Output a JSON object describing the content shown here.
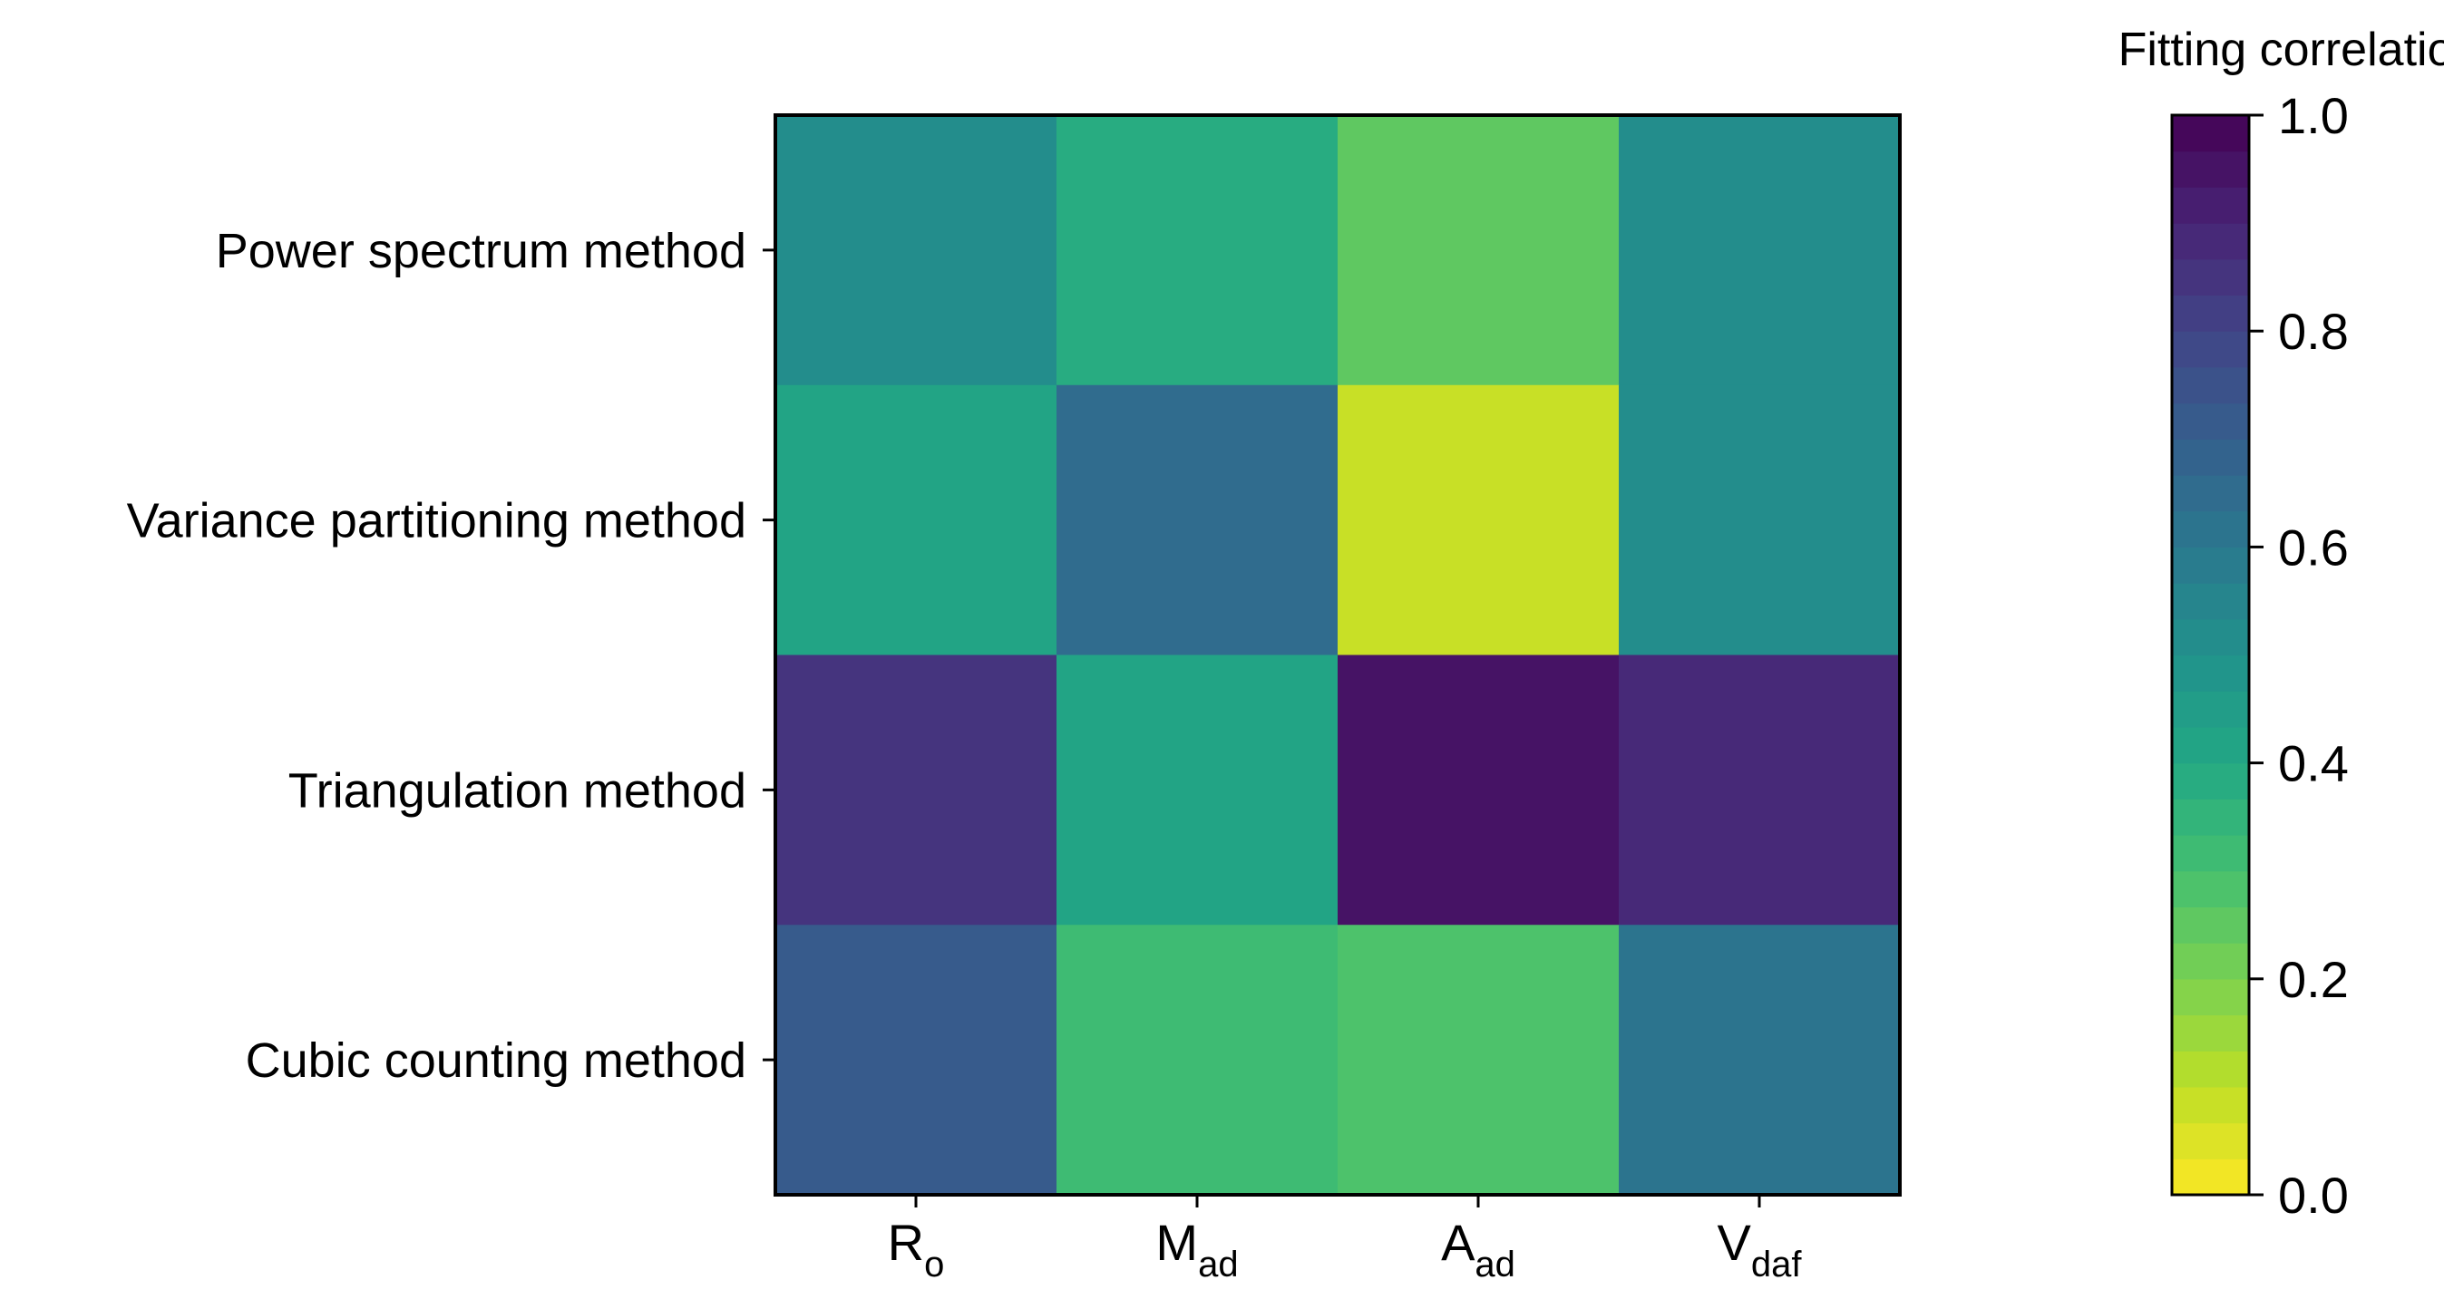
{
  "chart_data": {
    "type": "heatmap",
    "title": "",
    "xlabel": "",
    "ylabel": "",
    "x_categories": [
      {
        "base": "R",
        "sub": "o"
      },
      {
        "base": "M",
        "sub": "ad"
      },
      {
        "base": "A",
        "sub": "ad"
      },
      {
        "base": "V",
        "sub": "daf"
      }
    ],
    "y_categories": [
      "Power spectrum method",
      "Variance partitioning method",
      "Triangulation method",
      "Cubic counting method"
    ],
    "values": [
      [
        0.5,
        0.38,
        0.26,
        0.5
      ],
      [
        0.42,
        0.64,
        0.08,
        0.5
      ],
      [
        0.84,
        0.42,
        0.96,
        0.89
      ],
      [
        0.7,
        0.33,
        0.28,
        0.63
      ]
    ],
    "colorbar": {
      "title": "Fitting correlation",
      "min": 0.0,
      "max": 1.0,
      "levels": 30,
      "reversed": true,
      "colormap": "viridis_r",
      "ticks": [
        "0.0",
        "0.2",
        "0.4",
        "0.6",
        "0.8",
        "1.0"
      ],
      "placement": "right"
    },
    "grid": false
  }
}
